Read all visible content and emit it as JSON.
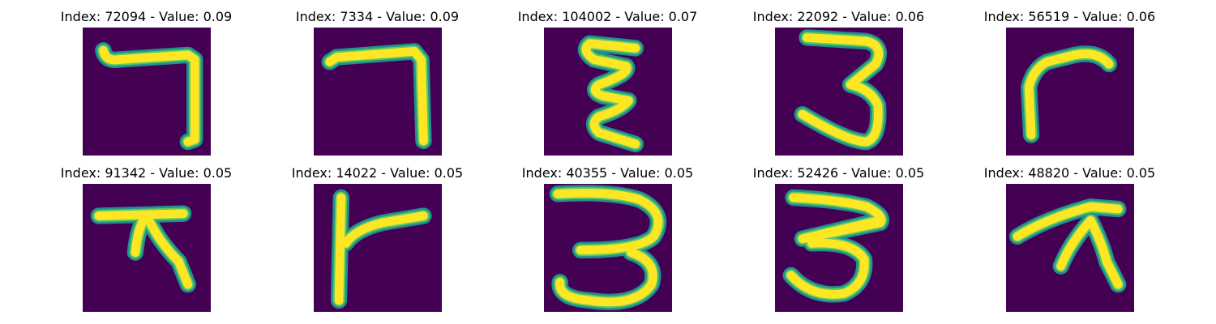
{
  "figure": {
    "panels": [
      {
        "title": "Index: 72094 - Value: 0.09",
        "index": 72094,
        "value": 0.09,
        "glyph": "hook-right"
      },
      {
        "title": "Index: 7334 - Value: 0.09",
        "index": 7334,
        "value": 0.09,
        "glyph": "hook-right-2"
      },
      {
        "title": "Index: 104002 - Value: 0.07",
        "index": 104002,
        "value": 0.07,
        "glyph": "zigzag"
      },
      {
        "title": "Index: 22092 - Value: 0.06",
        "index": 22092,
        "value": 0.06,
        "glyph": "three-open"
      },
      {
        "title": "Index: 56519 - Value: 0.06",
        "index": 56519,
        "value": 0.06,
        "glyph": "arch"
      },
      {
        "title": "Index: 91342 - Value: 0.05",
        "index": 91342,
        "value": 0.05,
        "glyph": "fork"
      },
      {
        "title": "Index: 14022 - Value: 0.05",
        "index": 14022,
        "value": 0.05,
        "glyph": "flag"
      },
      {
        "title": "Index: 40355 - Value: 0.05",
        "index": 40355,
        "value": 0.05,
        "glyph": "three-big"
      },
      {
        "title": "Index: 52426 - Value: 0.05",
        "index": 52426,
        "value": 0.05,
        "glyph": "three-wide"
      },
      {
        "title": "Index: 48820 - Value: 0.05",
        "index": 48820,
        "value": 0.05,
        "glyph": "fork-2"
      }
    ],
    "colors": {
      "background": "#440154",
      "edge": "#21918c",
      "mid": "#5ec962",
      "stroke": "#fde725"
    }
  }
}
